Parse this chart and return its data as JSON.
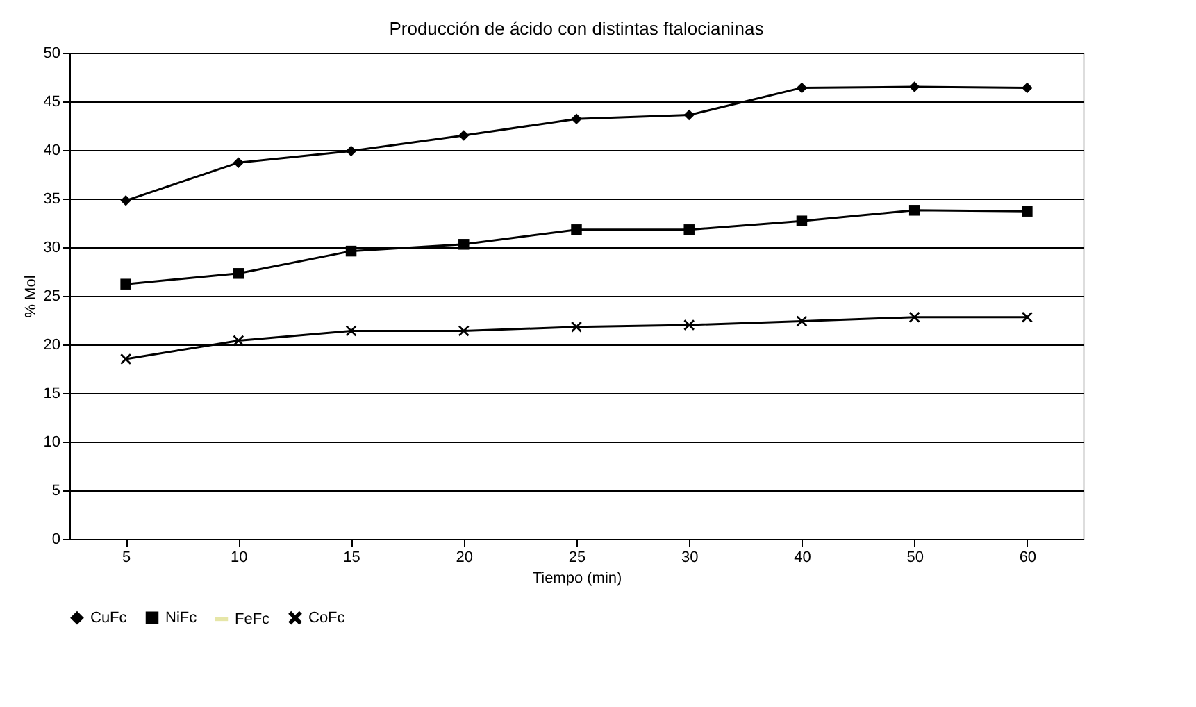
{
  "chart_data": {
    "type": "line",
    "title": "Producción de ácido con distintas ftalocianinas",
    "xlabel": "Tiempo (min)",
    "ylabel": "% Mol",
    "categories": [
      "5",
      "10",
      "15",
      "20",
      "25",
      "30",
      "40",
      "50",
      "60"
    ],
    "series": [
      {
        "name": "CuFc",
        "color": "#000000",
        "marker": "diamond",
        "values": [
          34.8,
          38.7,
          39.9,
          41.5,
          43.2,
          43.6,
          46.4,
          46.5,
          46.4
        ]
      },
      {
        "name": "NiFc",
        "color": "#000000",
        "marker": "square",
        "values": [
          26.2,
          27.3,
          29.6,
          30.3,
          31.8,
          31.8,
          32.7,
          33.8,
          33.7
        ]
      },
      {
        "name": "FeFc",
        "color": "#e6e6a8",
        "marker": "none",
        "values": [
          null,
          null,
          null,
          null,
          null,
          null,
          null,
          null,
          null
        ]
      },
      {
        "name": "CoFc",
        "color": "#000000",
        "marker": "cross",
        "values": [
          18.5,
          20.4,
          21.4,
          21.4,
          21.8,
          22.0,
          22.4,
          22.8,
          22.8
        ]
      }
    ],
    "ylim": [
      0,
      50
    ],
    "yticks": [
      0,
      5,
      10,
      15,
      20,
      25,
      30,
      35,
      40,
      45,
      50
    ],
    "grid": "y",
    "legend": "bottom",
    "line_style": "solid"
  }
}
